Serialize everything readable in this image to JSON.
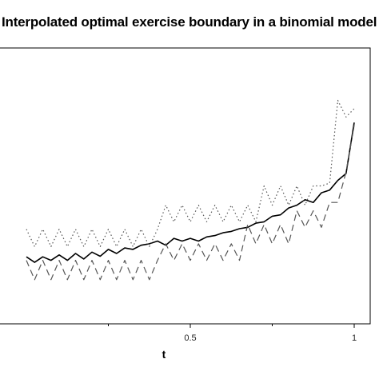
{
  "chart_data": {
    "type": "line",
    "title": "Interpolated optimal exercise boundary in a binomial model",
    "xlabel": "t",
    "ylabel": "",
    "xlim": [
      -0.05,
      1
    ],
    "ylim": [
      0,
      1
    ],
    "xticks": [
      0.5,
      1
    ],
    "xtick_labels": [
      "0.5",
      "1"
    ],
    "grid": false,
    "series": [
      {
        "style": "solid",
        "color": "#000000",
        "x": [
          0,
          0.025,
          0.05,
          0.075,
          0.1,
          0.125,
          0.15,
          0.175,
          0.2,
          0.225,
          0.25,
          0.275,
          0.3,
          0.325,
          0.35,
          0.375,
          0.4,
          0.425,
          0.45,
          0.475,
          0.5,
          0.525,
          0.55,
          0.575,
          0.6,
          0.625,
          0.65,
          0.675,
          0.7,
          0.725,
          0.75,
          0.775,
          0.8,
          0.825,
          0.85,
          0.875,
          0.9,
          0.925,
          0.95,
          0.975,
          1.0
        ],
        "y": [
          0.243,
          0.223,
          0.243,
          0.23,
          0.25,
          0.23,
          0.255,
          0.235,
          0.26,
          0.245,
          0.27,
          0.255,
          0.275,
          0.27,
          0.285,
          0.29,
          0.3,
          0.285,
          0.31,
          0.3,
          0.31,
          0.3,
          0.315,
          0.32,
          0.33,
          0.335,
          0.345,
          0.35,
          0.365,
          0.37,
          0.39,
          0.395,
          0.42,
          0.43,
          0.45,
          0.44,
          0.475,
          0.485,
          0.52,
          0.545,
          0.73
        ]
      },
      {
        "style": "dotted",
        "color": "#555555",
        "x": [
          0,
          0.025,
          0.05,
          0.075,
          0.1,
          0.125,
          0.15,
          0.175,
          0.2,
          0.225,
          0.25,
          0.275,
          0.3,
          0.325,
          0.35,
          0.375,
          0.4,
          0.425,
          0.45,
          0.475,
          0.5,
          0.525,
          0.55,
          0.575,
          0.6,
          0.625,
          0.65,
          0.675,
          0.7,
          0.725,
          0.75,
          0.775,
          0.8,
          0.825,
          0.85,
          0.875,
          0.9,
          0.925,
          0.95,
          0.975,
          1.0
        ],
        "y": [
          0.343,
          0.28,
          0.343,
          0.28,
          0.343,
          0.28,
          0.343,
          0.28,
          0.343,
          0.28,
          0.343,
          0.28,
          0.343,
          0.28,
          0.343,
          0.28,
          0.343,
          0.43,
          0.37,
          0.43,
          0.37,
          0.43,
          0.37,
          0.43,
          0.37,
          0.43,
          0.37,
          0.43,
          0.37,
          0.5,
          0.43,
          0.5,
          0.43,
          0.5,
          0.43,
          0.5,
          0.5,
          0.51,
          0.81,
          0.75,
          0.78
        ]
      },
      {
        "style": "dashed",
        "color": "#555555",
        "x": [
          0,
          0.025,
          0.05,
          0.075,
          0.1,
          0.125,
          0.15,
          0.175,
          0.2,
          0.225,
          0.25,
          0.275,
          0.3,
          0.325,
          0.35,
          0.375,
          0.4,
          0.425,
          0.45,
          0.475,
          0.5,
          0.525,
          0.55,
          0.575,
          0.6,
          0.625,
          0.65,
          0.675,
          0.7,
          0.725,
          0.75,
          0.775,
          0.8,
          0.825,
          0.85,
          0.875,
          0.9,
          0.925,
          0.95,
          0.975,
          1.0
        ],
        "y": [
          0.23,
          0.16,
          0.23,
          0.16,
          0.23,
          0.16,
          0.23,
          0.16,
          0.23,
          0.16,
          0.23,
          0.16,
          0.23,
          0.16,
          0.23,
          0.16,
          0.23,
          0.29,
          0.23,
          0.29,
          0.23,
          0.29,
          0.23,
          0.29,
          0.23,
          0.29,
          0.23,
          0.36,
          0.29,
          0.36,
          0.29,
          0.36,
          0.29,
          0.41,
          0.35,
          0.41,
          0.35,
          0.44,
          0.44,
          0.55,
          0.72
        ]
      }
    ]
  }
}
